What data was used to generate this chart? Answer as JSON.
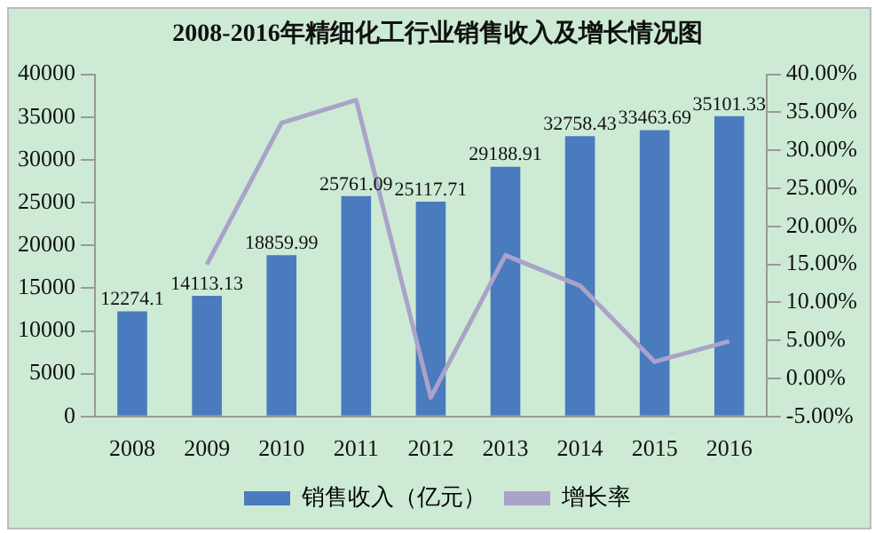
{
  "chart_data": {
    "type": "bar",
    "title": "2008-2016年精细化工行业销售收入及增长情况图",
    "categories": [
      "2008",
      "2009",
      "2010",
      "2011",
      "2012",
      "2013",
      "2014",
      "2015",
      "2016"
    ],
    "series": [
      {
        "name": "销售收入（亿元）",
        "color": "#4a7bbf",
        "values": [
          12274.1,
          14113.13,
          18859.99,
          25761.09,
          25117.71,
          29188.91,
          32758.43,
          33463.69,
          35101.33
        ],
        "value_labels": [
          "12274.1",
          "14113.13",
          "18859.99",
          "25761.09",
          "25117.71",
          "29188.91",
          "32758.43",
          "33463.69",
          "35101.33"
        ]
      },
      {
        "name": "增长率",
        "type": "line",
        "axis": "y2",
        "color": "#a9a3c9",
        "values": [
          null,
          15,
          33.6,
          36.6,
          -2.5,
          16.2,
          12.2,
          2.2,
          4.9
        ]
      }
    ],
    "ylim": [
      0,
      40000
    ],
    "yticks": [
      0,
      5000,
      10000,
      15000,
      20000,
      25000,
      30000,
      35000,
      40000
    ],
    "y2lim": [
      -5,
      40
    ],
    "y2ticks": [
      {
        "value": -5,
        "label": "-5.00%"
      },
      {
        "value": 0,
        "label": "0.00%"
      },
      {
        "value": 5,
        "label": "5.00%"
      },
      {
        "value": 10,
        "label": "10.00%"
      },
      {
        "value": 15,
        "label": "15.00%"
      },
      {
        "value": 20,
        "label": "20.00%"
      },
      {
        "value": 25,
        "label": "25.00%"
      },
      {
        "value": 30,
        "label": "30.00%"
      },
      {
        "value": 35,
        "label": "35.00%"
      },
      {
        "value": 40,
        "label": "40.00%"
      }
    ],
    "grid": false,
    "legend": "bottom",
    "marker": "none"
  }
}
